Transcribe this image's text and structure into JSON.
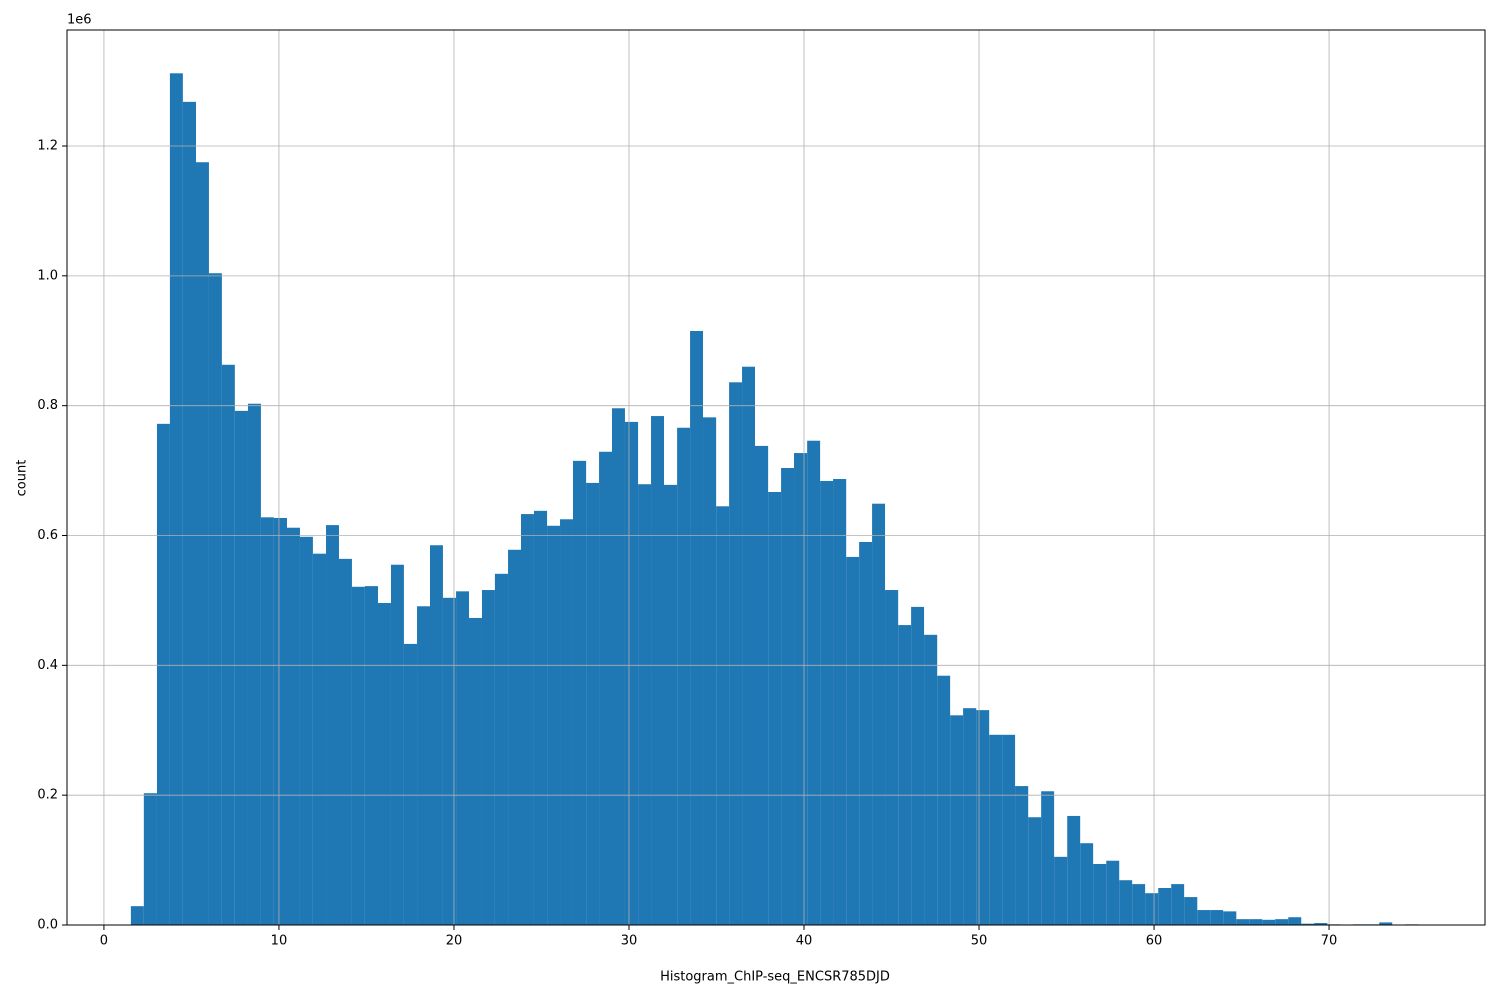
{
  "chart_data": {
    "type": "histogram",
    "x_label": "Histogram_ChIP-seq_ENCSR785DJD",
    "y_label": "count",
    "y_offset_label": "1e6",
    "color": "#1f77b4",
    "grid": true,
    "bins": [
      1.54,
      2.28,
      3.03,
      3.77,
      4.51,
      5.26,
      6.0,
      6.74,
      7.48,
      8.23,
      8.97,
      9.71,
      10.46,
      11.2,
      11.94,
      12.69,
      13.43,
      14.17,
      14.91,
      15.66,
      16.4,
      17.14,
      17.89,
      18.63,
      19.37,
      20.12,
      20.86,
      21.6,
      22.34,
      23.09,
      23.83,
      24.57,
      25.32,
      26.06,
      26.8,
      27.55,
      28.29,
      29.03,
      29.77,
      30.52,
      31.26,
      32.0,
      32.75,
      33.49,
      34.23,
      34.98,
      35.72,
      36.46,
      37.2,
      37.95,
      38.69,
      39.43,
      40.18,
      40.92,
      41.66,
      42.41,
      43.15,
      43.89,
      44.63,
      45.38,
      46.12,
      46.86,
      47.61,
      48.35,
      49.09,
      49.84,
      50.58,
      51.32,
      52.06,
      52.81,
      53.55,
      54.29,
      55.04,
      55.78,
      56.52,
      57.27,
      58.01,
      58.75,
      59.49,
      60.24,
      60.98,
      61.72,
      62.47,
      63.21,
      63.95,
      64.7,
      65.44,
      66.18,
      66.92,
      67.67,
      68.41,
      69.15,
      69.9,
      70.64,
      71.38,
      72.13,
      72.87,
      73.61,
      74.35,
      75.1,
      75.84
    ],
    "values": [
      29000,
      203000,
      772000,
      1312000,
      1268000,
      1175000,
      1004000,
      863000,
      792000,
      803000,
      628000,
      627000,
      612000,
      598000,
      572000,
      616000,
      564000,
      521000,
      522000,
      496000,
      555000,
      433000,
      491000,
      585000,
      504000,
      514000,
      473000,
      516000,
      541000,
      578000,
      633000,
      638000,
      615000,
      625000,
      715000,
      681000,
      729000,
      796000,
      775000,
      679000,
      784000,
      678000,
      766000,
      915000,
      782000,
      645000,
      836000,
      860000,
      738000,
      667000,
      704000,
      727000,
      746000,
      684000,
      687000,
      567000,
      590000,
      649000,
      516000,
      462000,
      490000,
      447000,
      384000,
      323000,
      334000,
      331000,
      293000,
      293000,
      214000,
      166000,
      206000,
      105000,
      168000,
      126000,
      94000,
      99000,
      69000,
      63000,
      49000,
      57000,
      63000,
      43000,
      23000,
      23000,
      21000,
      9000,
      9000,
      8000,
      9000,
      12000,
      2000,
      3000,
      1000,
      500,
      1000,
      1000,
      4000,
      300,
      1000,
      200
    ],
    "xlim": [
      -2.11,
      78.91
    ],
    "xticks": [
      0,
      10,
      20,
      30,
      40,
      50,
      60,
      70
    ],
    "ylim": [
      0,
      1378700
    ],
    "yticks": [
      {
        "value": 0,
        "label": "0.0"
      },
      {
        "value": 200000,
        "label": "0.2"
      },
      {
        "value": 400000,
        "label": "0.4"
      },
      {
        "value": 600000,
        "label": "0.6"
      },
      {
        "value": 800000,
        "label": "0.8"
      },
      {
        "value": 1000000,
        "label": "1.0"
      },
      {
        "value": 1200000,
        "label": "1.2"
      }
    ]
  }
}
